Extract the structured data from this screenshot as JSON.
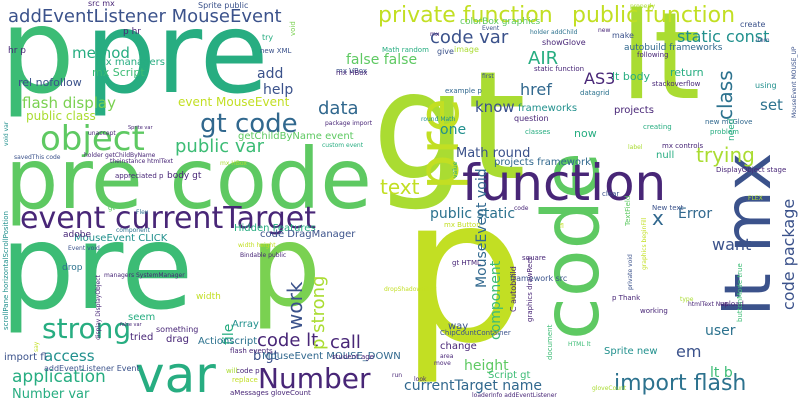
{
  "palette": {
    "dark_purple": "#482677",
    "indigo": "#3b528b",
    "blue": "#31688e",
    "teal_blue": "#2c728e",
    "teal": "#21908d",
    "teal_green": "#27ad81",
    "green": "#3cbc75",
    "mid_green": "#5ec962",
    "light_green": "#7ad151",
    "lime": "#aadc32",
    "yellow_lime": "#c2df23"
  },
  "words": [
    {
      "text": "p",
      "color": "#3cbc75"
    },
    {
      "text": "pre",
      "color": "#27ad81"
    },
    {
      "text": "gt",
      "color": "#aadc32"
    },
    {
      "text": "lt",
      "color": "#aadc32"
    },
    {
      "text": "pre code",
      "color": "#5ec962"
    },
    {
      "text": "pre",
      "color": "#3cbc75"
    },
    {
      "text": "p",
      "color": "#c2df23"
    },
    {
      "text": "p",
      "color": "#7ad151"
    },
    {
      "text": "code",
      "color": "#5ec962"
    },
    {
      "text": "pre",
      "color": "#c2df23"
    },
    {
      "text": "lt mx",
      "color": "#3b528b"
    },
    {
      "text": "function",
      "color": "#482677"
    },
    {
      "text": "event currentTarget",
      "color": "#482677"
    },
    {
      "text": "object",
      "color": "#5ec962"
    },
    {
      "text": "var",
      "color": "#27ad81"
    },
    {
      "text": "addEventListener MouseEvent",
      "color": "#3b528b"
    },
    {
      "text": "private function",
      "color": "#c2df23"
    },
    {
      "text": "public function",
      "color": "#c2df23"
    },
    {
      "text": "code var",
      "color": "#3b528b"
    },
    {
      "text": "static const",
      "color": "#21908d"
    },
    {
      "text": "gt code",
      "color": "#31688e"
    },
    {
      "text": "text",
      "color": "#c2df23"
    },
    {
      "text": "strong",
      "color": "#27ad81"
    },
    {
      "text": "Number",
      "color": "#482677"
    },
    {
      "text": "import flash",
      "color": "#2c728e"
    },
    {
      "text": "application",
      "color": "#27ad81"
    },
    {
      "text": "public var",
      "color": "#3cbc75"
    },
    {
      "text": "AIR",
      "color": "#27ad81"
    },
    {
      "text": "href",
      "color": "#31688e"
    },
    {
      "text": "AS3",
      "color": "#482677"
    },
    {
      "text": "class",
      "color": "#2c728e"
    },
    {
      "text": "trying",
      "color": "#aadc32"
    },
    {
      "text": "code package",
      "color": "#3b528b"
    },
    {
      "text": "x",
      "color": "#31688e"
    },
    {
      "text": "Error",
      "color": "#31688e"
    },
    {
      "text": "want",
      "color": "#3b528b"
    },
    {
      "text": "set",
      "color": "#2c728e"
    },
    {
      "text": "data",
      "color": "#31688e"
    },
    {
      "text": "know",
      "color": "#3b528b"
    },
    {
      "text": "work",
      "color": "#3b528b"
    },
    {
      "text": "call",
      "color": "#482677"
    },
    {
      "text": "code lt",
      "color": "#482677"
    },
    {
      "text": "p strong",
      "color": "#aadc32"
    },
    {
      "text": "component",
      "color": "#3cbc75"
    },
    {
      "text": "em",
      "color": "#3b528b"
    },
    {
      "text": "Math round",
      "color": "#3b528b"
    },
    {
      "text": "public static",
      "color": "#2c728e"
    },
    {
      "text": "currentTarget name",
      "color": "#31688e"
    },
    {
      "text": "height",
      "color": "#5ec962"
    },
    {
      "text": "flash display",
      "color": "#7ad151"
    },
    {
      "text": "method",
      "color": "#27ad81"
    },
    {
      "text": "access",
      "color": "#21908d"
    },
    {
      "text": "Number var",
      "color": "#27ad81"
    },
    {
      "text": "lt b",
      "color": "#3cbc75"
    },
    {
      "text": "user",
      "color": "#2c728e"
    },
    {
      "text": "file",
      "color": "#27ad81"
    },
    {
      "text": "b gt",
      "color": "#3b528b"
    },
    {
      "text": "add",
      "color": "#3b528b"
    },
    {
      "text": "help",
      "color": "#3b528b"
    },
    {
      "text": "one",
      "color": "#21908d"
    },
    {
      "text": "false false",
      "color": "#5ec962"
    },
    {
      "text": "MouseEvent void",
      "color": "#31688e"
    },
    {
      "text": "event MouseEvent",
      "color": "#c2df23"
    },
    {
      "text": "public class",
      "color": "#aadc32"
    },
    {
      "text": "mx Script",
      "color": "#3cbc75"
    },
    {
      "text": "rel nofollow",
      "color": "#3b528b"
    },
    {
      "text": "mx managers",
      "color": "#27ad81"
    },
    {
      "text": "getChildByName event",
      "color": "#5ec962"
    },
    {
      "text": "Hidden Features",
      "color": "#27ad81"
    },
    {
      "text": "MouseEvent CLICK",
      "color": "#21908d"
    },
    {
      "text": "Array",
      "color": "#21908d"
    },
    {
      "text": "drag",
      "color": "#482677"
    },
    {
      "text": "Actionscript",
      "color": "#2c728e"
    },
    {
      "text": "tried",
      "color": "#482677"
    },
    {
      "text": "seem",
      "color": "#27ad81"
    },
    {
      "text": "way",
      "color": "#3b528b"
    },
    {
      "text": "change",
      "color": "#482677"
    },
    {
      "text": "Script gt",
      "color": "#3cbc75"
    },
    {
      "text": "Sprite new",
      "color": "#21908d"
    },
    {
      "text": "code DragManager",
      "color": "#3b528b"
    },
    {
      "text": "frameworks",
      "color": "#21908d"
    },
    {
      "text": "projects framework",
      "color": "#31688e"
    },
    {
      "text": "autobuild frameworks",
      "color": "#31688e"
    },
    {
      "text": "colorBox graphics",
      "color": "#5ec962"
    },
    {
      "text": "return",
      "color": "#27ad81"
    },
    {
      "text": "lt body",
      "color": "#27ad81"
    },
    {
      "text": "now",
      "color": "#27ad81"
    },
    {
      "text": "null",
      "color": "#27ad81"
    },
    {
      "text": "projects",
      "color": "#482677"
    },
    {
      "text": "MouseEvent MOUSE_DOWN",
      "color": "#31688e"
    },
    {
      "text": "import fl",
      "color": "#3b528b"
    },
    {
      "text": "addEventListener Event",
      "color": "#3b528b"
    },
    {
      "text": "body gt",
      "color": "#482677"
    },
    {
      "text": "mx VBox",
      "color": "#3b528b"
    },
    {
      "text": "hr p",
      "color": "#482677"
    },
    {
      "text": "p hr",
      "color": "#482677"
    },
    {
      "text": "src mx",
      "color": "#482677"
    },
    {
      "text": "Sprite public",
      "color": "#3b528b"
    },
    {
      "text": "try",
      "color": "#27ad81"
    },
    {
      "text": "new XML",
      "color": "#3b528b"
    },
    {
      "text": "void",
      "color": "#7ad151"
    },
    {
      "text": "mx HBox",
      "color": "#482677"
    },
    {
      "text": "Math random",
      "color": "#27ad81"
    },
    {
      "text": "holder addChild",
      "color": "#2c728e"
    },
    {
      "text": "showGlove",
      "color": "#482677"
    },
    {
      "text": "make",
      "color": "#3b528b"
    },
    {
      "text": "give",
      "color": "#3b528b"
    },
    {
      "text": "image",
      "color": "#aadc32"
    },
    {
      "text": "following",
      "color": "#482677"
    },
    {
      "text": "stackoverflow",
      "color": "#482677"
    },
    {
      "text": "create",
      "color": "#3b528b"
    },
    {
      "text": "using",
      "color": "#21908d"
    },
    {
      "text": "static function",
      "color": "#482677"
    },
    {
      "text": "example p",
      "color": "#31688e"
    },
    {
      "text": "datagrid",
      "color": "#2c728e"
    },
    {
      "text": "question",
      "color": "#482677"
    },
    {
      "text": "round Math",
      "color": "#21908d"
    },
    {
      "text": "package import",
      "color": "#482677"
    },
    {
      "text": "custom event",
      "color": "#27ad81"
    },
    {
      "text": "classes",
      "color": "#27ad81"
    },
    {
      "text": "creating",
      "color": "#27ad81"
    },
    {
      "text": "new mcGlove",
      "color": "#31688e"
    },
    {
      "text": "problem",
      "color": "#27ad81"
    },
    {
      "text": "need",
      "color": "#27ad81"
    },
    {
      "text": "mx controls",
      "color": "#482677"
    },
    {
      "text": "DisplayObject stage",
      "color": "#482677"
    },
    {
      "text": "New text",
      "color": "#3b528b"
    },
    {
      "text": "TextField",
      "color": "#5ec962"
    },
    {
      "text": "clear",
      "color": "#3b528b"
    },
    {
      "text": "value",
      "color": "#27ad81"
    },
    {
      "text": "adobe",
      "color": "#482677"
    },
    {
      "text": "drop",
      "color": "#2c728e"
    },
    {
      "text": "theinstance htmlText",
      "color": "#482677"
    },
    {
      "text": "appreciated p",
      "color": "#482677"
    },
    {
      "text": "holder getChildByName",
      "color": "#482677"
    },
    {
      "text": "Sprite var",
      "color": "#482677"
    },
    {
      "text": "unaccept",
      "color": "#482677"
    },
    {
      "text": "mx Button",
      "color": "#c2df23"
    },
    {
      "text": "gt HTML",
      "color": "#482677"
    },
    {
      "text": "square",
      "color": "#482677"
    },
    {
      "text": "framework src",
      "color": "#3b528b"
    },
    {
      "text": "C autobuild",
      "color": "#482677"
    },
    {
      "text": "graphics drawRect",
      "color": "#482677"
    },
    {
      "text": "ChipCountContainer",
      "color": "#3b528b"
    },
    {
      "text": "area",
      "color": "#482677"
    },
    {
      "text": "move",
      "color": "#482677"
    },
    {
      "text": "document",
      "color": "#3cbc75"
    },
    {
      "text": "p Thank",
      "color": "#482677"
    },
    {
      "text": "working",
      "color": "#482677"
    },
    {
      "text": "htmlText New",
      "color": "#482677"
    },
    {
      "text": "upload",
      "color": "#482677"
    },
    {
      "text": "width",
      "color": "#c2df23"
    },
    {
      "text": "something",
      "color": "#482677"
    },
    {
      "text": "flash events",
      "color": "#482677"
    },
    {
      "text": "student age",
      "color": "#482677"
    },
    {
      "text": "aMessages gloveCount",
      "color": "#482677"
    },
    {
      "text": "code p",
      "color": "#482677"
    },
    {
      "text": "look",
      "color": "#482677"
    },
    {
      "text": "loaderInfo addEventListener",
      "color": "#482677"
    },
    {
      "text": "Bindable public",
      "color": "#482677"
    },
    {
      "text": "width height",
      "color": "#c2df23"
    },
    {
      "text": "false var",
      "color": "#482677"
    },
    {
      "text": "managers SystemManager",
      "color": "#482677"
    },
    {
      "text": "display DisplayObject",
      "color": "#482677"
    },
    {
      "text": "replace",
      "color": "#c2df23"
    },
    {
      "text": "run",
      "color": "#482677"
    },
    {
      "text": "will",
      "color": "#aadc32"
    },
    {
      "text": "say",
      "color": "#c2df23"
    },
    {
      "text": "type",
      "color": "#aadc32"
    },
    {
      "text": "label",
      "color": "#aadc32"
    },
    {
      "text": "Event void",
      "color": "#3b528b"
    },
    {
      "text": "savedThis code",
      "color": "#3b528b"
    },
    {
      "text": "scrollPane horizontalScrollPosition",
      "color": "#21908d"
    },
    {
      "text": "void var",
      "color": "#21908d"
    },
    {
      "text": "buttonMode true",
      "color": "#3cbc75"
    },
    {
      "text": "private void",
      "color": "#3b528b"
    },
    {
      "text": "MouseEvent MOUSE_UP",
      "color": "#3b528b"
    },
    {
      "text": "properly",
      "color": "#aadc32"
    },
    {
      "text": "gloveCount",
      "color": "#aadc32"
    },
    {
      "text": "dropShadowFilter",
      "color": "#c2df23"
    },
    {
      "text": "graphics beginFill",
      "color": "#c2df23"
    },
    {
      "text": "HTML lt",
      "color": "#3cbc75"
    },
    {
      "text": "first",
      "color": "#3b528b"
    },
    {
      "text": "Flex",
      "color": "#2c728e"
    },
    {
      "text": "gt",
      "color": "#5ec962"
    },
    {
      "text": "component",
      "color": "#2c728e"
    },
    {
      "text": "mx",
      "color": "#482677"
    },
    {
      "text": "Event",
      "color": "#3b528b"
    },
    {
      "text": "code",
      "color": "#482677"
    },
    {
      "text": "item",
      "color": "#3b528b"
    },
    {
      "text": "new",
      "color": "#482677"
    },
    {
      "text": "fl",
      "color": "#c2df23"
    },
    {
      "text": "FLEX",
      "color": "#aadc32"
    },
    {
      "text": "mx HBox",
      "color": "#aadc32"
    }
  ]
}
